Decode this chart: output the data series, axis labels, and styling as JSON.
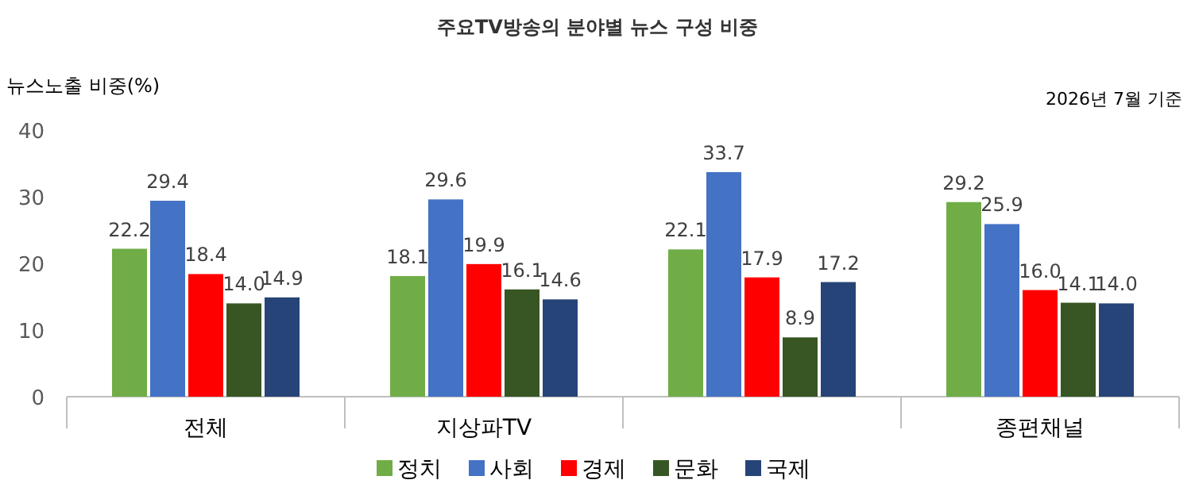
{
  "chart_data": {
    "type": "bar",
    "title": "주요TV방송의 분야별 뉴스 구성 비중",
    "ylabel": "뉴스노출 비중(%)",
    "annotations": [
      "2026년 7월 기준"
    ],
    "categories": [
      "전체",
      "지상파TV",
      null,
      "종편채널"
    ],
    "series": [
      {
        "name": "정치",
        "color": "#70ad47",
        "values": [
          22.2,
          18.1,
          22.1,
          29.2
        ],
        "value_labels": [
          "22.2",
          "18.1",
          "22.1",
          "29.2"
        ]
      },
      {
        "name": "사회",
        "color": "#4472c4",
        "values": [
          29.4,
          29.6,
          33.7,
          25.9
        ],
        "value_labels": [
          "29.4",
          "29.6",
          "33.7",
          "25.9"
        ]
      },
      {
        "name": "경제",
        "color": "#ff0000",
        "values": [
          18.4,
          19.9,
          17.9,
          16.0
        ],
        "value_labels": [
          "18.4",
          "19.9",
          "17.9",
          "16.0"
        ]
      },
      {
        "name": "문화",
        "color": "#375623",
        "values": [
          14.0,
          16.1,
          8.9,
          14.1
        ],
        "value_labels": [
          "14.0",
          "16.1",
          "8.9",
          "14.1"
        ]
      },
      {
        "name": "국제",
        "color": "#264478",
        "values": [
          14.9,
          14.6,
          17.2,
          14.0
        ],
        "value_labels": [
          "14.9",
          "14.6",
          "17.2",
          "14.0"
        ]
      }
    ],
    "ylim": [
      0,
      40
    ],
    "yticks": [
      0,
      10,
      20,
      30,
      40
    ],
    "grid": false,
    "legend": "bottom"
  }
}
